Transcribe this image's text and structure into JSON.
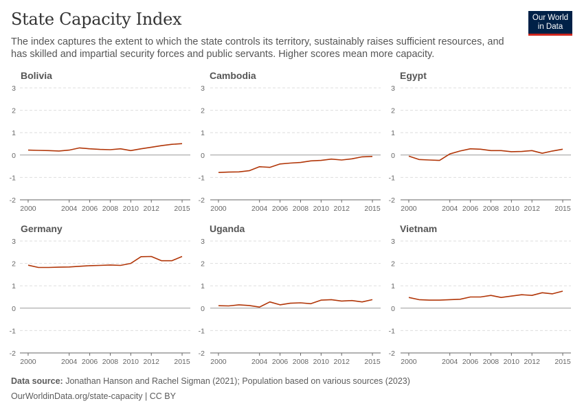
{
  "header": {
    "title": "State Capacity Index",
    "subtitle": "The index captures the extent to which the state controls its territory, sustainably raises sufficient resources, and has skilled and impartial security forces and public servants. Higher scores mean more capacity."
  },
  "logo": {
    "line1": "Our World",
    "line2": "in Data",
    "bg": "#002147",
    "accent": "#ce261e"
  },
  "footer": {
    "source_label": "Data source:",
    "source_text": " Jonathan Hanson and Rachel Sigman (2021); Population based on various sources (2023)",
    "url": "OurWorldinData.org/state-capacity",
    "license": " | CC BY"
  },
  "colors": {
    "line": "#b13507",
    "grid": "#dddddd",
    "axis": "#666666",
    "tick": "#666666",
    "panel_title": "#555555"
  },
  "chart_data": {
    "type": "line",
    "xlabel": "",
    "ylabel": "",
    "ylim": [
      -2,
      3
    ],
    "xlim": [
      1999.2,
      2015.8
    ],
    "y_ticks": [
      -2,
      -1,
      0,
      1,
      2,
      3
    ],
    "x_ticks": [
      2000,
      2004,
      2006,
      2008,
      2010,
      2012,
      2015
    ],
    "grid": true,
    "x": [
      2000,
      2001,
      2002,
      2003,
      2004,
      2005,
      2006,
      2007,
      2008,
      2009,
      2010,
      2011,
      2012,
      2013,
      2014,
      2015
    ],
    "series": [
      {
        "name": "Bolivia",
        "values": [
          0.22,
          0.21,
          0.2,
          0.18,
          0.22,
          0.32,
          0.28,
          0.25,
          0.24,
          0.28,
          0.2,
          0.28,
          0.35,
          0.42,
          0.48,
          0.51
        ]
      },
      {
        "name": "Cambodia",
        "values": [
          -0.78,
          -0.76,
          -0.75,
          -0.7,
          -0.52,
          -0.55,
          -0.4,
          -0.36,
          -0.33,
          -0.26,
          -0.24,
          -0.18,
          -0.22,
          -0.17,
          -0.08,
          -0.06
        ]
      },
      {
        "name": "Egypt",
        "values": [
          -0.05,
          -0.2,
          -0.22,
          -0.24,
          0.05,
          0.18,
          0.28,
          0.26,
          0.2,
          0.2,
          0.15,
          0.16,
          0.2,
          0.08,
          0.18,
          0.26
        ]
      },
      {
        "name": "Germany",
        "values": [
          1.92,
          1.82,
          1.82,
          1.83,
          1.84,
          1.87,
          1.9,
          1.91,
          1.93,
          1.91,
          2.0,
          2.3,
          2.31,
          2.12,
          2.12,
          2.31
        ]
      },
      {
        "name": "Uganda",
        "values": [
          0.11,
          0.1,
          0.15,
          0.12,
          0.05,
          0.28,
          0.15,
          0.22,
          0.24,
          0.2,
          0.36,
          0.38,
          0.32,
          0.34,
          0.28,
          0.38
        ]
      },
      {
        "name": "Vietnam",
        "values": [
          0.48,
          0.38,
          0.36,
          0.36,
          0.38,
          0.4,
          0.5,
          0.5,
          0.57,
          0.48,
          0.54,
          0.6,
          0.57,
          0.69,
          0.64,
          0.76
        ]
      }
    ]
  }
}
